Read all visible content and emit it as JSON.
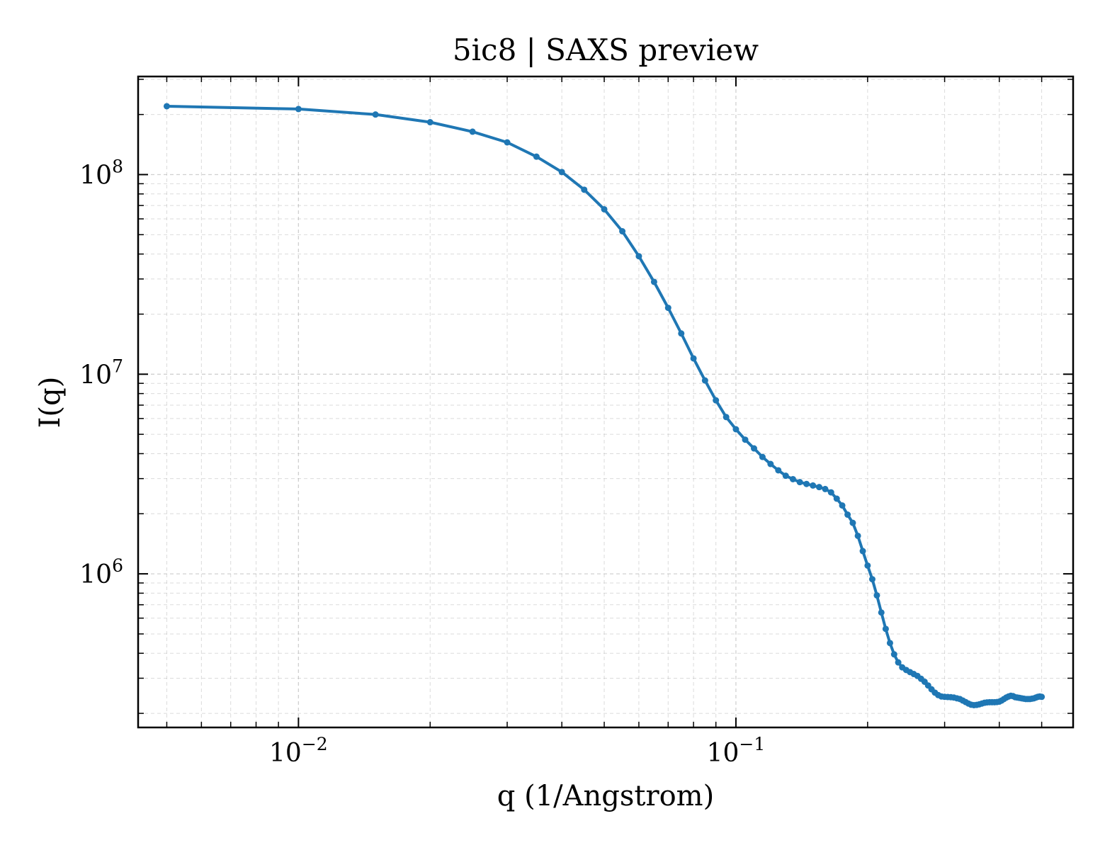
{
  "chart_data": {
    "type": "line",
    "title": "5ic8 | SAXS preview",
    "xlabel": "q (1/Angstrom)",
    "ylabel": "I(q)",
    "xscale": "log",
    "yscale": "log",
    "xlim": [
      0.0043,
      0.59
    ],
    "ylim": [
      170000,
      310000000
    ],
    "grid": true,
    "line_color": "#1f77b4",
    "x_ticks": [
      {
        "value": 0.01,
        "base": "10",
        "exp": "−2"
      },
      {
        "value": 0.1,
        "base": "10",
        "exp": "−1"
      }
    ],
    "y_ticks": [
      {
        "value": 1000000,
        "base": "10",
        "exp": "6"
      },
      {
        "value": 10000000,
        "base": "10",
        "exp": "7"
      },
      {
        "value": 100000000,
        "base": "10",
        "exp": "8"
      }
    ],
    "series": [
      {
        "x": [
          0.005,
          0.01,
          0.015,
          0.02,
          0.025,
          0.03,
          0.035,
          0.04,
          0.045,
          0.05,
          0.055,
          0.06,
          0.065,
          0.07,
          0.075,
          0.08,
          0.085,
          0.09,
          0.095,
          0.1,
          0.105,
          0.11,
          0.115,
          0.12,
          0.125,
          0.13,
          0.135,
          0.14,
          0.145,
          0.15,
          0.155,
          0.16,
          0.165,
          0.17,
          0.175,
          0.18,
          0.185,
          0.19,
          0.195,
          0.2,
          0.205,
          0.21,
          0.215,
          0.22,
          0.225,
          0.23,
          0.235,
          0.24,
          0.245,
          0.25,
          0.255,
          0.26,
          0.265,
          0.27,
          0.275,
          0.28,
          0.285,
          0.29,
          0.295,
          0.3,
          0.305,
          0.31,
          0.315,
          0.32,
          0.325,
          0.33,
          0.335,
          0.34,
          0.345,
          0.35,
          0.355,
          0.36,
          0.365,
          0.37,
          0.375,
          0.38,
          0.385,
          0.39,
          0.395,
          0.4,
          0.405,
          0.41,
          0.415,
          0.42,
          0.425,
          0.43,
          0.435,
          0.44,
          0.445,
          0.45,
          0.455,
          0.46,
          0.465,
          0.47,
          0.475,
          0.48,
          0.485,
          0.49,
          0.495,
          0.5
        ],
        "y": [
          220000000,
          213000000,
          200000000,
          183000000,
          164000000,
          145000000,
          123000000,
          103000000,
          84000000,
          67000000,
          52000000,
          39000000,
          29000000,
          21500000,
          16000000,
          12000000,
          9300000,
          7400000,
          6100000,
          5300000,
          4700000,
          4250000,
          3850000,
          3550000,
          3300000,
          3100000,
          2980000,
          2880000,
          2820000,
          2770000,
          2720000,
          2660000,
          2560000,
          2380000,
          2200000,
          1980000,
          1800000,
          1550000,
          1300000,
          1100000,
          940000,
          780000,
          640000,
          530000,
          450000,
          395000,
          360000,
          340000,
          330000,
          322000,
          315000,
          308000,
          298000,
          288000,
          276000,
          264000,
          254000,
          247000,
          243000,
          242000,
          241500,
          241000,
          240000,
          238000,
          236000,
          232000,
          228000,
          224000,
          221000,
          220000,
          220500,
          222000,
          224000,
          226000,
          227000,
          227500,
          227500,
          227500,
          228000,
          229000,
          232000,
          236000,
          240000,
          243000,
          245000,
          244000,
          241000,
          240000,
          239000,
          238000,
          237000,
          236000,
          236000,
          236000,
          237000,
          238000,
          240000,
          242000,
          243000,
          242000
        ]
      }
    ]
  }
}
